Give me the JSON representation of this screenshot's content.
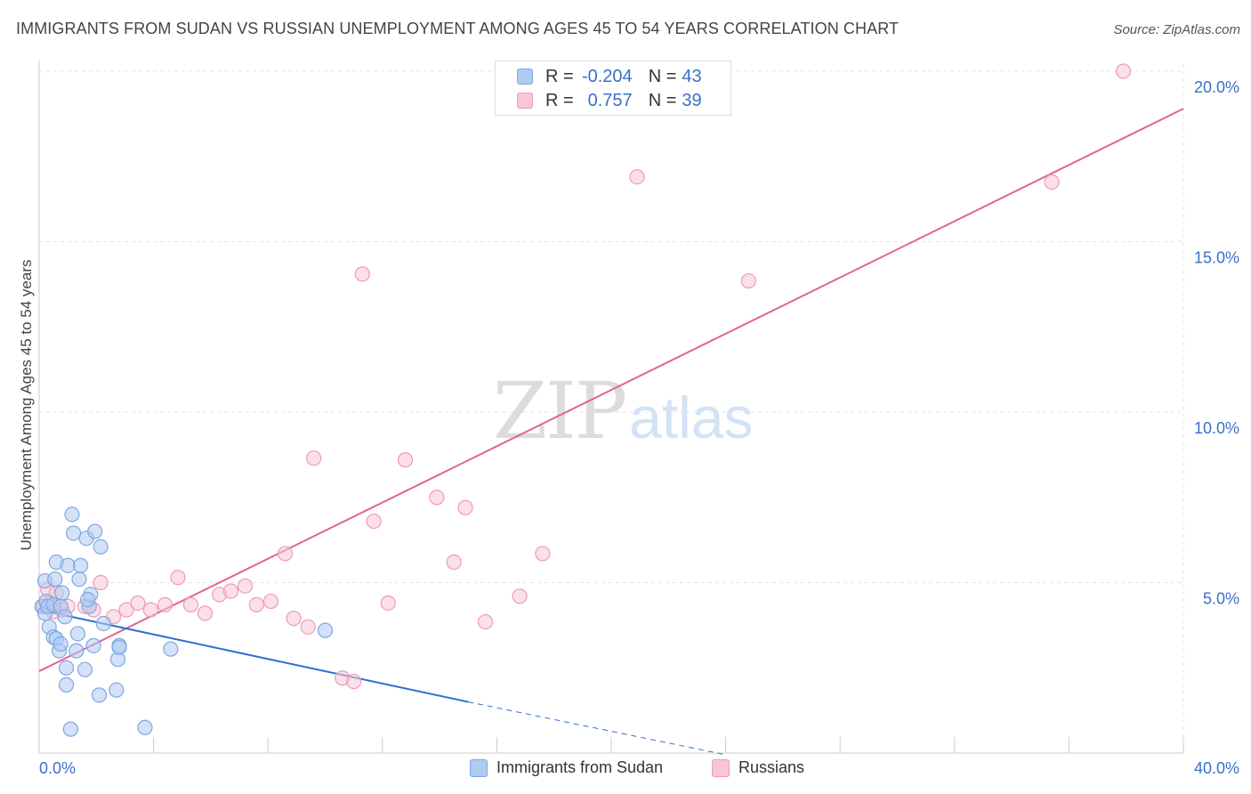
{
  "header": {
    "title": "IMMIGRANTS FROM SUDAN VS RUSSIAN UNEMPLOYMENT AMONG AGES 45 TO 54 YEARS CORRELATION CHART",
    "source": "Source: ZipAtlas.com"
  },
  "watermark": {
    "zip": "ZIP",
    "atlas": "atlas"
  },
  "legend": {
    "r_key": "R =",
    "n_key": "N =",
    "series": [
      {
        "r_value": "-0.204",
        "n_value": "43"
      },
      {
        "r_value": "0.757",
        "n_value": "39"
      }
    ]
  },
  "colors": {
    "sudan_fill": "#aecbf2",
    "sudan_stroke": "#7ea7e0",
    "sudan_line": "#2f6fd0",
    "russians_fill": "#f8c6d6",
    "russians_stroke": "#ee9ab8",
    "russians_line": "#e2648f",
    "tick_label": "#3b6fc9",
    "grid": "#e4e4e4"
  },
  "chart_data": {
    "type": "scatter",
    "title": "IMMIGRANTS FROM SUDAN VS RUSSIAN UNEMPLOYMENT AMONG AGES 45 TO 54 YEARS CORRELATION CHART",
    "xlabel": "",
    "ylabel": "Unemployment Among Ages 45 to 54 years",
    "xlim": [
      0,
      40
    ],
    "ylim": [
      0,
      20
    ],
    "x_tick_labels": [
      "0.0%",
      "40.0%"
    ],
    "y_ticks": [
      5,
      10,
      15,
      20
    ],
    "y_tick_labels": [
      "5.0%",
      "10.0%",
      "15.0%",
      "20.0%"
    ],
    "grid": true,
    "legend_position": "top-center",
    "series": [
      {
        "name": "Immigrants from Sudan",
        "r": -0.204,
        "n": 43,
        "trend": {
          "x0": 0,
          "y0": 4.2,
          "x1": 15.0,
          "y1": 1.5,
          "dashed_to_x": 24.0,
          "dashed_to_y": -0.05
        },
        "points": [
          [
            0.1,
            4.3
          ],
          [
            0.2,
            5.05
          ],
          [
            0.2,
            4.1
          ],
          [
            0.25,
            4.45
          ],
          [
            0.3,
            4.3
          ],
          [
            0.35,
            3.7
          ],
          [
            0.5,
            3.4
          ],
          [
            0.5,
            4.35
          ],
          [
            0.55,
            5.1
          ],
          [
            0.6,
            3.35
          ],
          [
            0.6,
            5.6
          ],
          [
            0.7,
            3.0
          ],
          [
            0.75,
            3.2
          ],
          [
            0.75,
            4.3
          ],
          [
            0.8,
            4.7
          ],
          [
            0.9,
            4.0
          ],
          [
            0.95,
            2.5
          ],
          [
            0.95,
            2.0
          ],
          [
            1.0,
            5.5
          ],
          [
            1.1,
            0.7
          ],
          [
            1.15,
            7.0
          ],
          [
            1.2,
            6.45
          ],
          [
            1.3,
            3.0
          ],
          [
            1.35,
            3.5
          ],
          [
            1.4,
            5.1
          ],
          [
            1.45,
            5.5
          ],
          [
            1.6,
            2.45
          ],
          [
            1.65,
            6.3
          ],
          [
            1.75,
            4.3
          ],
          [
            1.8,
            4.65
          ],
          [
            1.9,
            3.15
          ],
          [
            1.95,
            6.5
          ],
          [
            2.1,
            1.7
          ],
          [
            2.15,
            6.05
          ],
          [
            2.25,
            3.8
          ],
          [
            2.7,
            1.85
          ],
          [
            2.75,
            2.75
          ],
          [
            2.8,
            3.15
          ],
          [
            2.8,
            3.1
          ],
          [
            3.7,
            0.75
          ],
          [
            4.6,
            3.05
          ],
          [
            10.0,
            3.6
          ],
          [
            1.7,
            4.5
          ]
        ]
      },
      {
        "name": "Russians",
        "r": 0.757,
        "n": 39,
        "trend": {
          "x0": 0,
          "y0": 2.4,
          "x1": 40.0,
          "y1": 18.9
        },
        "points": [
          [
            0.15,
            4.3
          ],
          [
            0.3,
            4.8
          ],
          [
            0.4,
            4.4
          ],
          [
            0.5,
            4.15
          ],
          [
            0.6,
            4.7
          ],
          [
            0.8,
            4.2
          ],
          [
            1.0,
            4.3
          ],
          [
            1.6,
            4.3
          ],
          [
            1.9,
            4.2
          ],
          [
            2.15,
            5.0
          ],
          [
            2.6,
            4.0
          ],
          [
            3.05,
            4.2
          ],
          [
            3.45,
            4.4
          ],
          [
            3.9,
            4.2
          ],
          [
            4.4,
            4.35
          ],
          [
            4.85,
            5.15
          ],
          [
            5.3,
            4.35
          ],
          [
            5.8,
            4.1
          ],
          [
            6.3,
            4.65
          ],
          [
            6.7,
            4.75
          ],
          [
            7.2,
            4.9
          ],
          [
            7.6,
            4.35
          ],
          [
            8.1,
            4.45
          ],
          [
            8.6,
            5.85
          ],
          [
            8.9,
            3.95
          ],
          [
            9.4,
            3.7
          ],
          [
            9.6,
            8.65
          ],
          [
            10.6,
            2.2
          ],
          [
            11.0,
            2.1
          ],
          [
            11.3,
            14.05
          ],
          [
            11.7,
            6.8
          ],
          [
            12.2,
            4.4
          ],
          [
            12.8,
            8.6
          ],
          [
            13.9,
            7.5
          ],
          [
            14.5,
            5.6
          ],
          [
            14.9,
            7.2
          ],
          [
            15.6,
            3.85
          ],
          [
            16.8,
            4.6
          ],
          [
            17.6,
            5.85
          ]
        ],
        "extra_points": [
          [
            20.9,
            16.9
          ],
          [
            24.8,
            13.85
          ],
          [
            35.4,
            16.75
          ],
          [
            37.9,
            20.0
          ]
        ]
      }
    ]
  },
  "bottom_legend": {
    "items": [
      "Immigrants from Sudan",
      "Russians"
    ]
  }
}
